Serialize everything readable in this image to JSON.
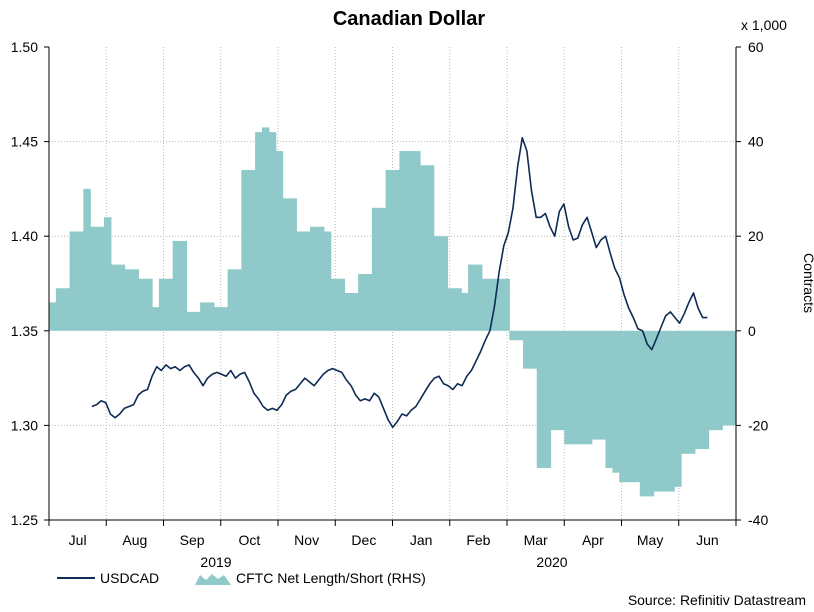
{
  "chart_data": {
    "type": "line",
    "title": "Canadian Dollar",
    "left_axis": {
      "ylim": [
        1.25,
        1.5
      ],
      "ticks": [
        "1.25",
        "1.30",
        "1.35",
        "1.40",
        "1.45",
        "1.50"
      ]
    },
    "right_axis": {
      "ylim": [
        -40,
        60
      ],
      "ticks": [
        "-40",
        "-20",
        "0",
        "20",
        "40",
        "60"
      ],
      "label": "Contracts",
      "unit_note": "x 1,000"
    },
    "x_ticks": [
      "Jul",
      "Aug",
      "Sep",
      "Oct",
      "Nov",
      "Dec",
      "Jan",
      "Feb",
      "Mar",
      "Apr",
      "May",
      "Jun"
    ],
    "year_labels": [
      "2019",
      "2020"
    ],
    "series": [
      {
        "name": "USDCAD",
        "axis": "left",
        "color": "#0d2b55",
        "values": [
          1.31,
          1.311,
          1.313,
          1.312,
          1.306,
          1.304,
          1.306,
          1.309,
          1.31,
          1.311,
          1.316,
          1.318,
          1.319,
          1.326,
          1.331,
          1.329,
          1.332,
          1.33,
          1.331,
          1.329,
          1.331,
          1.332,
          1.328,
          1.325,
          1.321,
          1.325,
          1.327,
          1.328,
          1.327,
          1.326,
          1.329,
          1.325,
          1.327,
          1.328,
          1.323,
          1.317,
          1.314,
          1.31,
          1.308,
          1.309,
          1.308,
          1.311,
          1.316,
          1.318,
          1.319,
          1.322,
          1.325,
          1.323,
          1.321,
          1.324,
          1.327,
          1.329,
          1.33,
          1.329,
          1.328,
          1.324,
          1.321,
          1.316,
          1.313,
          1.314,
          1.313,
          1.317,
          1.315,
          1.309,
          1.303,
          1.299,
          1.302,
          1.306,
          1.305,
          1.308,
          1.31,
          1.314,
          1.318,
          1.322,
          1.325,
          1.326,
          1.322,
          1.321,
          1.319,
          1.322,
          1.321,
          1.326,
          1.329,
          1.334,
          1.339,
          1.345,
          1.35,
          1.363,
          1.381,
          1.395,
          1.402,
          1.415,
          1.437,
          1.452,
          1.445,
          1.424,
          1.41,
          1.41,
          1.412,
          1.405,
          1.4,
          1.413,
          1.417,
          1.405,
          1.398,
          1.399,
          1.406,
          1.41,
          1.402,
          1.394,
          1.398,
          1.4,
          1.391,
          1.383,
          1.378,
          1.369,
          1.362,
          1.357,
          1.351,
          1.35,
          1.343,
          1.34,
          1.346,
          1.352,
          1.358,
          1.36,
          1.357,
          1.354,
          1.359,
          1.365,
          1.37,
          1.362,
          1.357,
          1.357
        ],
        "x_range": [
          0.75,
          11.5
        ]
      },
      {
        "name": "CFTC Net Length/Short (RHS)",
        "axis": "right",
        "color": "#8fc9c9",
        "style": "step-area",
        "values": [
          6,
          9,
          9,
          21,
          21,
          30,
          22,
          22,
          24,
          14,
          14,
          13,
          13,
          11,
          11,
          5,
          11,
          11,
          19,
          19,
          4,
          4,
          6,
          6,
          5,
          5,
          13,
          13,
          34,
          34,
          42,
          43,
          42,
          38,
          28,
          28,
          21,
          21,
          22,
          22,
          21,
          11,
          11,
          8,
          8,
          12,
          12,
          26,
          26,
          34,
          34,
          38,
          38,
          38,
          35,
          35,
          20,
          20,
          9,
          9,
          8,
          14,
          14,
          11,
          11,
          11,
          11,
          -2,
          -2,
          -8,
          -8,
          -29,
          -29,
          -21,
          -21,
          -24,
          -24,
          -24,
          -24,
          -23,
          -23,
          -29,
          -30,
          -32,
          -32,
          -32,
          -35,
          -35,
          -34,
          -34,
          -34,
          -33,
          -26,
          -26,
          -25,
          -25,
          -21,
          -21,
          -20,
          -20
        ],
        "x_range": [
          0.0,
          12.0
        ]
      }
    ],
    "legend_location": "bottom-left"
  },
  "source_note": "Source: Refinitiv Datastream"
}
